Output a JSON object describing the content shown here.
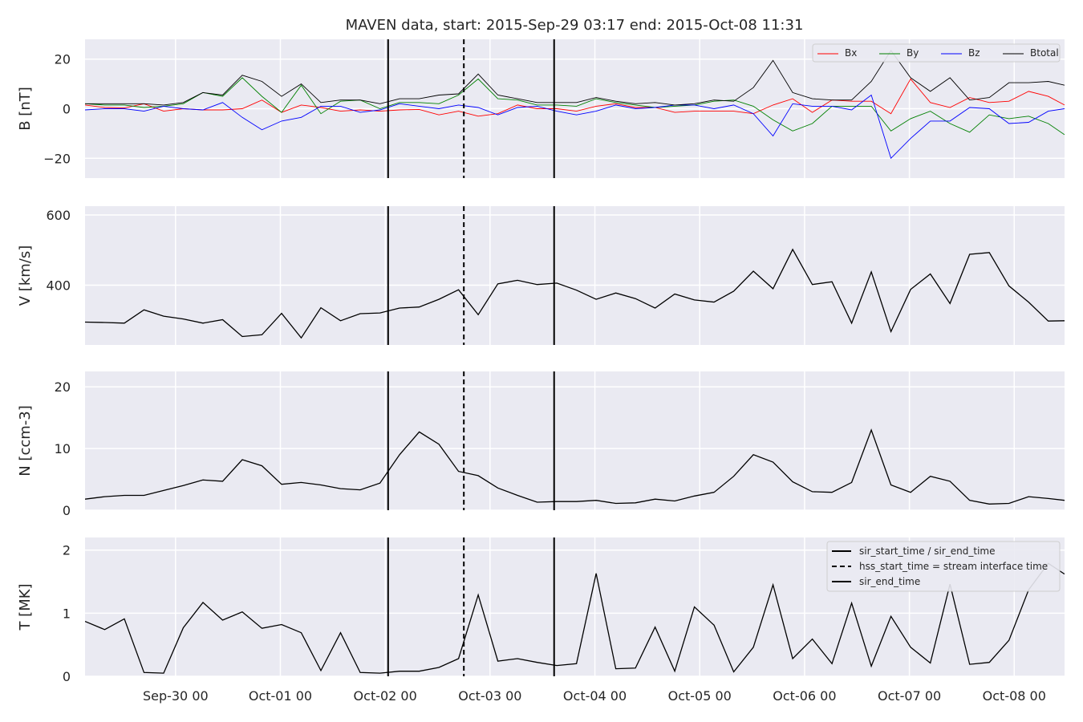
{
  "chart_data": {
    "type": "line",
    "title": "MAVEN data, start: 2015-Sep-29 03:17  end: 2015-Oct-08 11:31",
    "x_range": [
      "2015-09-29 03:17",
      "2015-10-08 11:31"
    ],
    "x_ticks": [
      {
        "label": "Sep-30 00",
        "t": "2015-09-30 00:00"
      },
      {
        "label": "Oct-01 00",
        "t": "2015-10-01 00:00"
      },
      {
        "label": "Oct-02 00",
        "t": "2015-10-02 00:00"
      },
      {
        "label": "Oct-03 00",
        "t": "2015-10-03 00:00"
      },
      {
        "label": "Oct-04 00",
        "t": "2015-10-04 00:00"
      },
      {
        "label": "Oct-05 00",
        "t": "2015-10-05 00:00"
      },
      {
        "label": "Oct-06 00",
        "t": "2015-10-06 00:00"
      },
      {
        "label": "Oct-07 00",
        "t": "2015-10-07 00:00"
      },
      {
        "label": "Oct-08 00",
        "t": "2015-10-08 00:00"
      }
    ],
    "x_times": [
      "2015-09-29 03:17",
      "2015-09-29 07:47",
      "2015-09-29 12:17",
      "2015-09-29 16:47",
      "2015-09-29 21:17",
      "2015-09-30 01:47",
      "2015-09-30 06:17",
      "2015-09-30 10:47",
      "2015-09-30 15:17",
      "2015-09-30 19:47",
      "2015-10-01 00:17",
      "2015-10-01 04:47",
      "2015-10-01 09:17",
      "2015-10-01 13:47",
      "2015-10-01 18:17",
      "2015-10-01 22:47",
      "2015-10-02 03:17",
      "2015-10-02 07:47",
      "2015-10-02 12:17",
      "2015-10-02 16:47",
      "2015-10-02 21:17",
      "2015-10-03 01:47",
      "2015-10-03 06:17",
      "2015-10-03 10:47",
      "2015-10-03 15:17",
      "2015-10-03 19:47",
      "2015-10-04 00:17",
      "2015-10-04 04:47",
      "2015-10-04 09:17",
      "2015-10-04 13:47",
      "2015-10-04 18:17",
      "2015-10-04 22:47",
      "2015-10-05 03:17",
      "2015-10-05 07:47",
      "2015-10-05 12:17",
      "2015-10-05 16:47",
      "2015-10-05 21:17",
      "2015-10-06 01:47",
      "2015-10-06 06:17",
      "2015-10-06 10:47",
      "2015-10-06 15:17",
      "2015-10-06 19:47",
      "2015-10-07 00:17",
      "2015-10-07 04:47",
      "2015-10-07 09:17",
      "2015-10-07 13:47",
      "2015-10-07 18:17",
      "2015-10-07 22:47",
      "2015-10-08 03:17",
      "2015-10-08 07:47",
      "2015-10-08 11:31"
    ],
    "vertical_lines": [
      {
        "t": "2015-10-02 00:40",
        "style": "solid"
      },
      {
        "t": "2015-10-02 18:00",
        "style": "dashed"
      },
      {
        "t": "2015-10-03 14:40",
        "style": "solid"
      }
    ],
    "panels": [
      {
        "ylabel": "B [nT]",
        "ylim": [
          -28,
          28
        ],
        "yticks": [
          -20,
          0,
          20
        ],
        "legend_position": "top-right",
        "legend_columns": 4,
        "series": [
          {
            "name": "Bx",
            "color": "#ff0000",
            "values": [
              1.5,
              0.5,
              0.3,
              2.0,
              -1.0,
              0.0,
              -0.5,
              -0.5,
              0.0,
              3.5,
              -1.5,
              1.5,
              0.5,
              -1.0,
              -0.5,
              -1.0,
              -0.5,
              -0.3,
              -2.5,
              -1.0,
              -3.0,
              -2.0,
              1.5,
              0.0,
              0.0,
              -1.0,
              1.0,
              2.0,
              0.5,
              0.5,
              -1.5,
              -1.0,
              -1.0,
              -1.0,
              -2.0,
              1.5,
              4.0,
              -1.5,
              3.5,
              3.0,
              3.0,
              -2.0,
              12.0,
              2.5,
              0.5,
              4.5,
              2.5,
              3.0,
              7.0,
              5.0,
              1.5
            ]
          },
          {
            "name": "By",
            "color": "#008000",
            "values": [
              2.0,
              1.5,
              1.5,
              0.5,
              1.0,
              2.0,
              6.5,
              5.0,
              12.5,
              5.0,
              -1.5,
              9.5,
              -2.0,
              3.0,
              3.5,
              0.0,
              2.5,
              2.5,
              2.0,
              5.5,
              12.0,
              4.0,
              3.5,
              1.5,
              1.5,
              1.0,
              4.0,
              2.5,
              1.5,
              0.5,
              1.0,
              1.5,
              3.0,
              3.5,
              1.0,
              -4.5,
              -9.0,
              -6.0,
              1.0,
              1.0,
              1.0,
              -9.0,
              -4.0,
              -1.0,
              -6.0,
              -9.5,
              -2.5,
              -4.0,
              -3.0,
              -6.0,
              -10.5
            ]
          },
          {
            "name": "Bz",
            "color": "#0000ff",
            "values": [
              -0.5,
              0.0,
              0.0,
              -1.0,
              1.0,
              0.0,
              -0.5,
              2.5,
              -3.5,
              -8.5,
              -5.0,
              -3.5,
              1.0,
              1.0,
              -1.5,
              -0.5,
              2.0,
              1.0,
              0.0,
              1.5,
              0.5,
              -2.5,
              0.5,
              1.0,
              -1.0,
              -2.5,
              -1.0,
              1.5,
              0.0,
              0.5,
              1.5,
              1.5,
              0.0,
              1.5,
              -2.0,
              -11.0,
              2.0,
              1.0,
              1.0,
              -0.5,
              5.5,
              -20.0,
              -12.0,
              -5.0,
              -5.0,
              0.5,
              0.0,
              -6.0,
              -5.5,
              -1.0,
              0.0
            ]
          },
          {
            "name": "Btotal",
            "color": "#000000",
            "values": [
              2.0,
              2.0,
              2.0,
              2.0,
              1.5,
              2.5,
              6.5,
              5.5,
              13.5,
              11.0,
              5.0,
              10.0,
              2.5,
              3.5,
              3.5,
              2.0,
              4.0,
              4.0,
              5.5,
              6.0,
              14.0,
              5.5,
              4.0,
              2.5,
              2.5,
              2.5,
              4.5,
              3.0,
              2.0,
              2.5,
              1.5,
              2.0,
              3.5,
              3.0,
              8.5,
              19.5,
              6.5,
              4.0,
              3.5,
              3.5,
              11.0,
              23.5,
              12.5,
              7.0,
              12.5,
              3.5,
              4.5,
              10.5,
              10.5,
              11.0,
              9.5
            ]
          }
        ]
      },
      {
        "ylabel": "V [km/s]",
        "ylim": [
          230,
          625
        ],
        "yticks": [
          400,
          600
        ],
        "series": [
          {
            "name": "",
            "color": "#000000",
            "values": [
              295,
              294,
              292,
              330,
              312,
              304,
              292,
              302,
              254,
              259,
              320,
              250,
              336,
              299,
              319,
              321,
              335,
              338,
              360,
              387,
              316,
              404,
              414,
              402,
              406,
              386,
              360,
              378,
              362,
              335,
              375,
              358,
              352,
              383,
              440,
              390,
              502,
              402,
              410,
              292,
              438,
              268,
              388,
              432,
              348,
              488,
              493,
              398,
              352,
              298,
              299
            ]
          }
        ]
      },
      {
        "ylabel": "N [ccm-3]",
        "ylim": [
          0,
          22.5
        ],
        "yticks": [
          0,
          10,
          20
        ],
        "series": [
          {
            "name": "",
            "color": "#000000",
            "values": [
              1.8,
              2.2,
              2.4,
              2.4,
              3.2,
              4.0,
              4.9,
              4.7,
              8.2,
              7.2,
              4.2,
              4.5,
              4.1,
              3.5,
              3.3,
              4.4,
              9.0,
              12.7,
              10.7,
              6.3,
              5.6,
              3.6,
              2.4,
              1.3,
              1.4,
              1.4,
              1.6,
              1.1,
              1.2,
              1.8,
              1.5,
              2.3,
              2.9,
              5.5,
              9.0,
              7.8,
              4.6,
              3.0,
              2.9,
              4.5,
              13.0,
              4.1,
              2.9,
              5.5,
              4.7,
              1.6,
              1.0,
              1.1,
              2.2,
              1.9,
              1.6
            ]
          }
        ]
      },
      {
        "ylabel": "T [MK]",
        "ylim": [
          0,
          2.2
        ],
        "yticks": [
          0,
          1,
          2
        ],
        "legend_position": "top-right",
        "legend": [
          {
            "label": "sir_start_time / sir_end_time",
            "style": "solid"
          },
          {
            "label": "hss_start_time = stream interface time",
            "style": "dashed"
          },
          {
            "label": "sir_end_time",
            "style": "solid"
          }
        ],
        "series": [
          {
            "name": "",
            "color": "#000000",
            "values": [
              0.87,
              0.74,
              0.91,
              0.06,
              0.05,
              0.77,
              1.17,
              0.89,
              1.02,
              0.76,
              0.82,
              0.69,
              0.09,
              0.69,
              0.06,
              0.05,
              0.08,
              0.08,
              0.14,
              0.28,
              1.29,
              0.24,
              0.28,
              0.22,
              0.17,
              0.2,
              1.63,
              0.12,
              0.13,
              0.78,
              0.08,
              1.1,
              0.81,
              0.07,
              0.46,
              1.45,
              0.28,
              0.59,
              0.2,
              1.16,
              0.16,
              0.95,
              0.46,
              0.21,
              1.46,
              0.19,
              0.22,
              0.57,
              1.37,
              1.79,
              1.62
            ]
          }
        ]
      }
    ]
  }
}
